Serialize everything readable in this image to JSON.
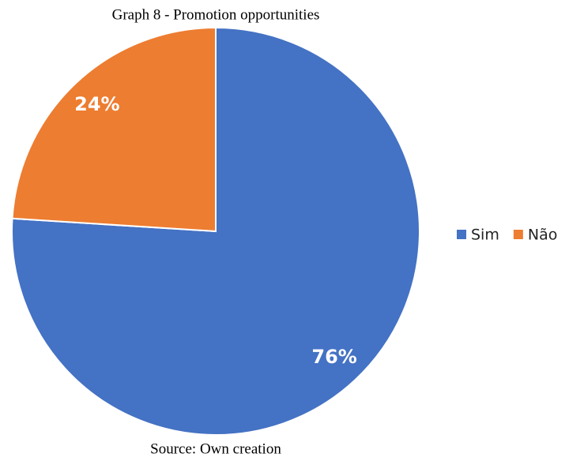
{
  "chart_data": {
    "type": "pie",
    "title": "Graph 8 - Promotion opportunities",
    "categories": [
      "Sim",
      "Não"
    ],
    "values": [
      76,
      24
    ],
    "value_labels": [
      "76%",
      "24%"
    ],
    "colors": [
      "#4472c4",
      "#ed7d31"
    ],
    "legend": "right",
    "source": "Source: Own creation"
  }
}
